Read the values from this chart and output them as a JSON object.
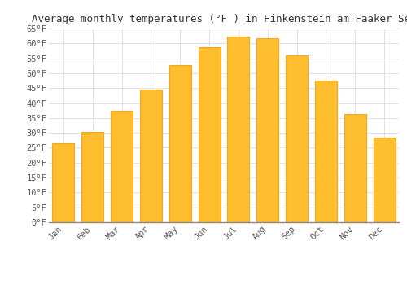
{
  "title": "Average monthly temperatures (°F ) in Finkenstein am Faaker See",
  "months": [
    "Jan",
    "Feb",
    "Mar",
    "Apr",
    "May",
    "Jun",
    "Jul",
    "Aug",
    "Sep",
    "Oct",
    "Nov",
    "Dec"
  ],
  "values": [
    26.6,
    30.2,
    37.4,
    44.6,
    52.7,
    58.8,
    62.2,
    61.7,
    56.1,
    47.5,
    36.3,
    28.4
  ],
  "bar_color": "#FFBE2D",
  "bar_edge_color": "#F5A623",
  "ylim": [
    0,
    65
  ],
  "yticks": [
    0,
    5,
    10,
    15,
    20,
    25,
    30,
    35,
    40,
    45,
    50,
    55,
    60,
    65
  ],
  "background_color": "#FFFFFF",
  "grid_color": "#DDDDDD",
  "title_fontsize": 9,
  "tick_fontsize": 7.5,
  "font_family": "monospace"
}
